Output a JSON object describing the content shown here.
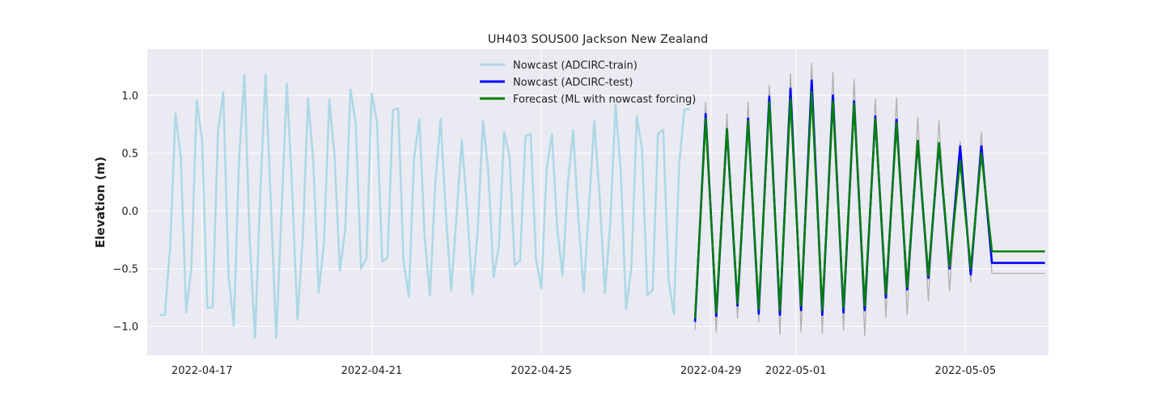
{
  "chart_data": {
    "type": "line",
    "title": "UH403 SOUS00 Jackson New Zealand",
    "xlabel": "",
    "ylabel": "Elevation (m)",
    "xlim": [
      "2022-04-15T17:00",
      "2022-05-06T23:00"
    ],
    "ylim": [
      -1.25,
      1.4
    ],
    "grid": true,
    "legend_position": "top-center",
    "x_ticks": [
      "2022-04-17",
      "2022-04-21",
      "2022-04-25",
      "2022-04-29",
      "2022-05-01",
      "2022-05-05"
    ],
    "y_ticks": [
      -1.0,
      -0.5,
      0.0,
      0.5,
      1.0
    ],
    "y_tick_labels": [
      "−1.0",
      "−0.5",
      "0.0",
      "0.5",
      "1.0"
    ],
    "colors": {
      "background": "#eaeaf2",
      "grid": "#ffffff",
      "train": "#add8e6",
      "test": "#0000ff",
      "forecast": "#008000",
      "observed": "#b0b0b0"
    },
    "series": [
      {
        "name": "Nowcast (ADCIRC-train)",
        "color": "#add8e6",
        "tide": {
          "start": "2022-04-16T00:00",
          "end": "2022-04-28T12:00",
          "step_hours": 3,
          "highs": [
            [
              "2022-04-16T10:00",
              0.95
            ],
            [
              "2022-04-16T22:00",
              1.1
            ],
            [
              "2022-04-17T11:00",
              1.18
            ],
            [
              "2022-04-17T23:30",
              1.22
            ],
            [
              "2022-04-18T12:00",
              1.18
            ],
            [
              "2022-04-19T00:00",
              1.1
            ],
            [
              "2022-04-19T12:30",
              1.01
            ],
            [
              "2022-04-20T00:30",
              1.0
            ],
            [
              "2022-04-20T13:00",
              1.17
            ],
            [
              "2022-04-21T01:00",
              1.17
            ],
            [
              "2022-04-21T13:30",
              1.14
            ],
            [
              "2022-04-22T02:00",
              0.89
            ],
            [
              "2022-04-22T14:30",
              0.82
            ],
            [
              "2022-04-23T03:00",
              0.61
            ],
            [
              "2022-04-23T15:30",
              0.81
            ],
            [
              "2022-04-24T04:00",
              0.78
            ],
            [
              "2022-04-24T16:30",
              0.87
            ],
            [
              "2022-04-25T05:00",
              0.74
            ],
            [
              "2022-04-25T17:30",
              0.72
            ],
            [
              "2022-04-26T06:00",
              0.78
            ],
            [
              "2022-04-26T18:30",
              0.95
            ],
            [
              "2022-04-27T07:00",
              0.95
            ],
            [
              "2022-04-27T19:30",
              0.95
            ],
            [
              "2022-04-28T08:00",
              0.88
            ]
          ],
          "lows": [
            [
              "2022-04-16T03:30",
              -0.9
            ],
            [
              "2022-04-16T16:00",
              -1.01
            ],
            [
              "2022-04-17T04:30",
              -1.12
            ],
            [
              "2022-04-17T17:00",
              -1.13
            ],
            [
              "2022-04-18T05:30",
              -1.13
            ],
            [
              "2022-04-18T18:00",
              -1.1
            ],
            [
              "2022-04-19T06:30",
              -0.97
            ],
            [
              "2022-04-19T19:00",
              -0.81
            ],
            [
              "2022-04-20T07:00",
              -0.61
            ],
            [
              "2022-04-20T19:30",
              -0.74
            ],
            [
              "2022-04-21T07:30",
              -0.67
            ],
            [
              "2022-04-21T20:00",
              -0.86
            ],
            [
              "2022-04-22T08:30",
              -0.76
            ],
            [
              "2022-04-22T21:00",
              -0.69
            ],
            [
              "2022-04-23T09:30",
              -0.74
            ],
            [
              "2022-04-23T22:00",
              -0.66
            ],
            [
              "2022-04-24T10:30",
              -0.65
            ],
            [
              "2022-04-24T23:00",
              -0.77
            ],
            [
              "2022-04-25T11:30",
              -0.58
            ],
            [
              "2022-04-26T00:00",
              -0.7
            ],
            [
              "2022-04-26T12:30",
              -0.73
            ],
            [
              "2022-04-27T01:00",
              -0.96
            ],
            [
              "2022-04-27T13:30",
              -0.97
            ],
            [
              "2022-04-28T02:00",
              -1.02
            ]
          ]
        }
      },
      {
        "name": "Nowcast (ADCIRC-test)",
        "color": "#0000ff",
        "tide": {
          "start": "2022-04-28T15:00",
          "end": "2022-05-06T21:00",
          "step_hours": 3,
          "highs": [
            [
              "2022-04-28T21:00",
              0.84
            ],
            [
              "2022-04-29T09:00",
              0.71
            ],
            [
              "2022-04-29T21:00",
              0.8
            ],
            [
              "2022-04-30T09:00",
              0.99
            ],
            [
              "2022-04-30T21:00",
              1.06
            ],
            [
              "2022-05-01T09:00",
              1.13
            ],
            [
              "2022-05-01T21:00",
              1.0
            ],
            [
              "2022-05-02T09:00",
              0.95
            ],
            [
              "2022-05-02T21:00",
              0.82
            ],
            [
              "2022-05-03T09:00",
              0.79
            ],
            [
              "2022-05-03T21:00",
              0.6
            ],
            [
              "2022-05-04T09:00",
              0.58
            ],
            [
              "2022-05-04T21:00",
              0.56
            ],
            [
              "2022-05-05T09:00",
              0.56
            ]
          ],
          "lows": [
            [
              "2022-04-28T15:00",
              -0.96
            ],
            [
              "2022-04-29T03:00",
              -0.91
            ],
            [
              "2022-04-29T15:00",
              -0.82
            ],
            [
              "2022-04-30T03:00",
              -0.89
            ],
            [
              "2022-04-30T15:00",
              -0.9
            ],
            [
              "2022-05-01T03:00",
              -0.86
            ],
            [
              "2022-05-01T15:00",
              -0.9
            ],
            [
              "2022-05-02T03:00",
              -0.88
            ],
            [
              "2022-05-02T15:00",
              -0.86
            ],
            [
              "2022-05-03T03:00",
              -0.75
            ],
            [
              "2022-05-03T15:00",
              -0.68
            ],
            [
              "2022-05-04T03:00",
              -0.58
            ],
            [
              "2022-05-04T15:00",
              -0.5
            ],
            [
              "2022-05-05T03:00",
              -0.55
            ],
            [
              "2022-05-05T15:00",
              -0.45
            ]
          ]
        }
      },
      {
        "name": "Forecast (ML with nowcast forcing)",
        "color": "#008000",
        "tide": {
          "start": "2022-04-28T15:00",
          "end": "2022-05-06T21:00",
          "step_hours": 3,
          "highs": [
            [
              "2022-04-28T21:00",
              0.8
            ],
            [
              "2022-04-29T09:00",
              0.71
            ],
            [
              "2022-04-29T21:00",
              0.78
            ],
            [
              "2022-04-30T09:00",
              0.94
            ],
            [
              "2022-04-30T21:00",
              0.97
            ],
            [
              "2022-05-01T09:00",
              1.03
            ],
            [
              "2022-05-01T21:00",
              0.95
            ],
            [
              "2022-05-02T09:00",
              0.93
            ],
            [
              "2022-05-02T21:00",
              0.8
            ],
            [
              "2022-05-03T09:00",
              0.76
            ],
            [
              "2022-05-03T21:00",
              0.61
            ],
            [
              "2022-05-04T09:00",
              0.59
            ],
            [
              "2022-05-04T21:00",
              0.44
            ],
            [
              "2022-05-05T09:00",
              0.5
            ]
          ],
          "lows": [
            [
              "2022-04-28T15:00",
              -0.93
            ],
            [
              "2022-04-29T03:00",
              -0.88
            ],
            [
              "2022-04-29T15:00",
              -0.8
            ],
            [
              "2022-04-30T03:00",
              -0.85
            ],
            [
              "2022-04-30T15:00",
              -0.86
            ],
            [
              "2022-05-01T03:00",
              -0.82
            ],
            [
              "2022-05-01T15:00",
              -0.86
            ],
            [
              "2022-05-02T03:00",
              -0.84
            ],
            [
              "2022-05-02T15:00",
              -0.82
            ],
            [
              "2022-05-03T03:00",
              -0.72
            ],
            [
              "2022-05-03T15:00",
              -0.66
            ],
            [
              "2022-05-04T03:00",
              -0.56
            ],
            [
              "2022-05-04T15:00",
              -0.48
            ],
            [
              "2022-05-05T03:00",
              -0.5
            ],
            [
              "2022-05-05T15:00",
              -0.35
            ]
          ]
        }
      }
    ],
    "observations": {
      "color": "#b0b0b0",
      "tide": {
        "start": "2022-04-28T15:00",
        "end": "2022-05-06T21:00",
        "step_hours": 3,
        "highs": [
          [
            "2022-04-28T21:00",
            0.94
          ],
          [
            "2022-04-29T09:00",
            0.84
          ],
          [
            "2022-04-29T21:00",
            0.94
          ],
          [
            "2022-04-30T09:00",
            1.09
          ],
          [
            "2022-04-30T21:00",
            1.19
          ],
          [
            "2022-05-01T09:00",
            1.28
          ],
          [
            "2022-05-01T21:00",
            1.2
          ],
          [
            "2022-05-02T09:00",
            1.14
          ],
          [
            "2022-05-02T21:00",
            0.97
          ],
          [
            "2022-05-03T09:00",
            0.98
          ],
          [
            "2022-05-03T21:00",
            0.81
          ],
          [
            "2022-05-04T09:00",
            0.78
          ],
          [
            "2022-05-04T21:00",
            0.6
          ],
          [
            "2022-05-05T09:00",
            0.68
          ]
        ],
        "lows": [
          [
            "2022-04-28T15:00",
            -1.03
          ],
          [
            "2022-04-29T03:00",
            -1.05
          ],
          [
            "2022-04-29T15:00",
            -0.93
          ],
          [
            "2022-04-30T03:00",
            -0.96
          ],
          [
            "2022-04-30T15:00",
            -1.07
          ],
          [
            "2022-05-01T03:00",
            -1.05
          ],
          [
            "2022-05-01T15:00",
            -1.06
          ],
          [
            "2022-05-02T03:00",
            -1.03
          ],
          [
            "2022-05-02T15:00",
            -1.08
          ],
          [
            "2022-05-03T03:00",
            -0.92
          ],
          [
            "2022-05-03T15:00",
            -0.9
          ],
          [
            "2022-05-04T03:00",
            -0.78
          ],
          [
            "2022-05-04T15:00",
            -0.69
          ],
          [
            "2022-05-05T03:00",
            -0.62
          ],
          [
            "2022-05-05T15:00",
            -0.54
          ]
        ]
      }
    }
  }
}
